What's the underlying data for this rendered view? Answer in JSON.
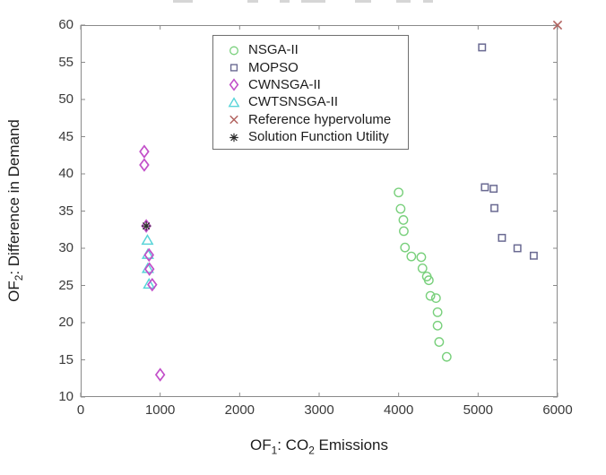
{
  "axis_labels": {
    "x_p1": "OF",
    "x_s1": "1",
    "x_p2": ": CO",
    "x_s2": "2",
    "x_p3": " Emissions",
    "y_p1": "OF",
    "y_s1": "2",
    "y_p2": ": Difference in Demand"
  },
  "chart_data": {
    "type": "scatter",
    "title": "",
    "xlabel": "OF1: CO2 Emissions",
    "ylabel": "OF2: Difference in Demand",
    "xlim": [
      0,
      6000
    ],
    "ylim": [
      10,
      60
    ],
    "xticks": [
      0,
      1000,
      2000,
      3000,
      4000,
      5000,
      6000
    ],
    "yticks": [
      10,
      15,
      20,
      25,
      30,
      35,
      40,
      45,
      50,
      55,
      60
    ],
    "grid": false,
    "legend_position": "top-center-inside",
    "frame_color": "#8a8a8a",
    "draw_order": [
      0,
      1,
      3,
      2,
      4,
      5
    ],
    "series": [
      {
        "name": "NSGA-II",
        "marker": "circle",
        "color": "#79d07c",
        "points": [
          [
            4000,
            37.5
          ],
          [
            4025,
            35.3
          ],
          [
            4060,
            33.8
          ],
          [
            4065,
            32.3
          ],
          [
            4080,
            30.1
          ],
          [
            4160,
            28.9
          ],
          [
            4285,
            28.8
          ],
          [
            4300,
            27.3
          ],
          [
            4355,
            26.2
          ],
          [
            4380,
            25.7
          ],
          [
            4400,
            23.6
          ],
          [
            4470,
            23.3
          ],
          [
            4490,
            21.4
          ],
          [
            4490,
            19.6
          ],
          [
            4510,
            17.4
          ],
          [
            4605,
            15.4
          ]
        ]
      },
      {
        "name": "MOPSO",
        "marker": "square",
        "color": "#6a6a92",
        "points": [
          [
            5050,
            57
          ],
          [
            5085,
            38.2
          ],
          [
            5195,
            38
          ],
          [
            5205,
            35.4
          ],
          [
            5300,
            31.4
          ],
          [
            5495,
            30
          ],
          [
            5700,
            29
          ]
        ]
      },
      {
        "name": "CWNSGA-II",
        "marker": "diamond",
        "color": "#c24fc9",
        "points": [
          [
            800,
            43
          ],
          [
            800,
            41.2
          ],
          [
            825,
            33
          ],
          [
            860,
            29.1
          ],
          [
            865,
            27.2
          ],
          [
            900,
            25.1
          ],
          [
            1000,
            13
          ]
        ]
      },
      {
        "name": "CWTSNSGA-II",
        "marker": "triangle",
        "color": "#58d4d8",
        "points": [
          [
            840,
            31.1
          ],
          [
            845,
            29.2
          ],
          [
            845,
            27.3
          ],
          [
            860,
            25.2
          ]
        ]
      },
      {
        "name": "Reference hypervolume",
        "marker": "x",
        "color": "#b2625f",
        "points": [
          [
            6000,
            60
          ]
        ]
      },
      {
        "name": "Solution Function Utility",
        "marker": "asterisk",
        "color": "#2d2d2d",
        "points": [
          [
            825,
            33
          ]
        ]
      }
    ]
  }
}
